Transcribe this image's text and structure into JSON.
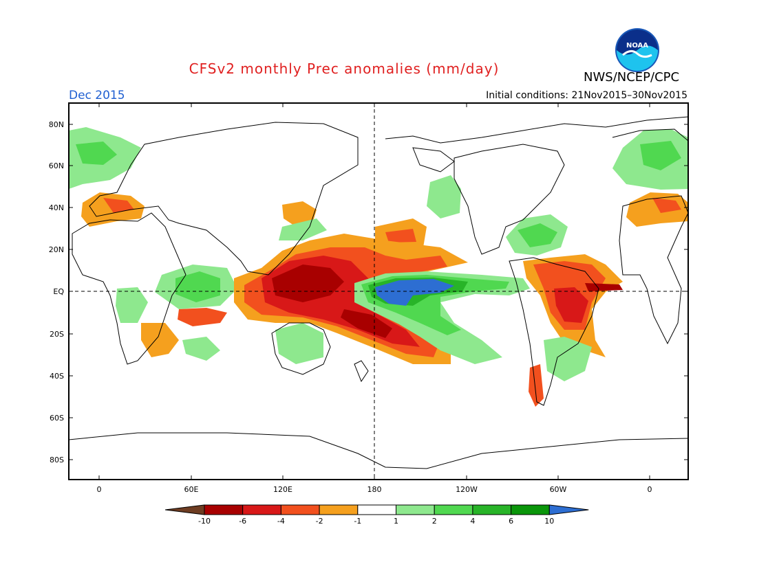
{
  "header": {
    "title": "CFSv2 monthly Prec anomalies (mm/day)",
    "agency": "NWS/NCEP/CPC",
    "logo_text": "NOAA",
    "month": "Dec 2015",
    "initial_conditions": "Initial conditions: 21Nov2015–30Nov2015"
  },
  "map": {
    "lat_labels": [
      "80N",
      "60N",
      "40N",
      "20N",
      "EQ",
      "20S",
      "40S",
      "60S",
      "80S"
    ],
    "lon_labels": [
      "0",
      "60E",
      "120E",
      "180",
      "120W",
      "60W",
      "0"
    ],
    "reference_lines": [
      "EQ",
      "180"
    ]
  },
  "legend": {
    "tick_labels": [
      "-10",
      "-6",
      "-4",
      "-2",
      "-1",
      "1",
      "2",
      "4",
      "6",
      "10"
    ],
    "colors": [
      "#6e3d22",
      "#a80000",
      "#d81818",
      "#f2501e",
      "#f5a01e",
      "#ffffff",
      "#8ee88e",
      "#50d850",
      "#28b428",
      "#0a960a",
      "#2d6ed2"
    ]
  },
  "colors": {
    "title": "#e02020",
    "month": "#1f5fd1",
    "dark_brown": "#6e3d22",
    "dark_red": "#a80000",
    "red": "#d81818",
    "orange_red": "#f2501e",
    "orange": "#f5a01e",
    "light_green": "#8ee88e",
    "green": "#50d850",
    "mid_green": "#28b428",
    "dark_green": "#0a960a",
    "blue": "#2d6ed2"
  }
}
